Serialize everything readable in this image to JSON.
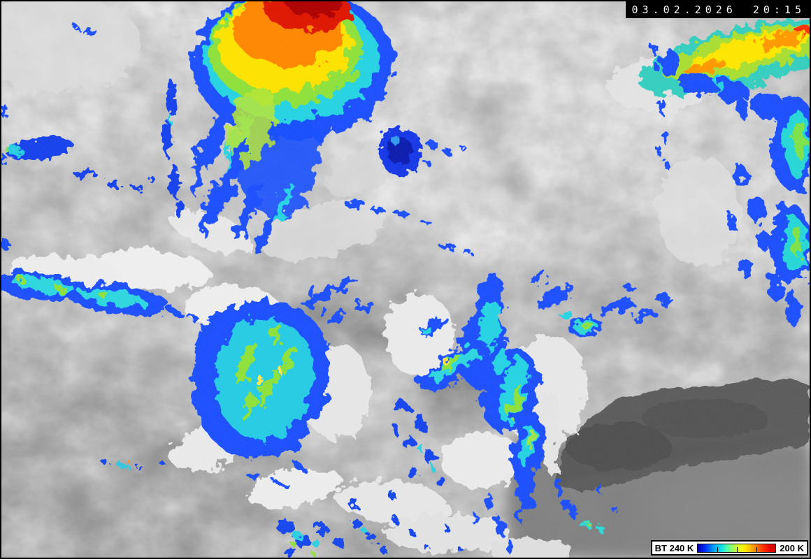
{
  "image": {
    "description": "Infrared satellite image with colour-enhanced cold cloud tops over Europe and North Africa",
    "timestamp": "03.02.2026 20:15"
  },
  "legend": {
    "label_left": "BT 240 K",
    "label_right": "200 K",
    "tick_positions_pct": [
      25,
      50,
      75
    ],
    "colormap": [
      "#0000a8",
      "#0020f0",
      "#0068ff",
      "#00b8ff",
      "#10e0e8",
      "#58ffa8",
      "#a8ff50",
      "#e8ff18",
      "#ffe800",
      "#ffae00",
      "#ff7000",
      "#ff3000",
      "#e80800",
      "#c80000"
    ]
  },
  "palette": {
    "border": "#000000",
    "overlay_bg": "#000000",
    "overlay_text": "#f5f5f5",
    "legend_bg": "#ffffff",
    "legend_text": "#000000",
    "enhance_blue": "#1a50ff",
    "enhance_cyan": "#28d4e4",
    "enhance_green": "#8fe23a",
    "enhance_yellow": "#ffe400",
    "enhance_orange": "#ff8800",
    "enhance_red": "#e01600",
    "cloud_white": "#ececec",
    "land_gray": "#7e7e7e",
    "sea_dark_gray": "#565656"
  }
}
